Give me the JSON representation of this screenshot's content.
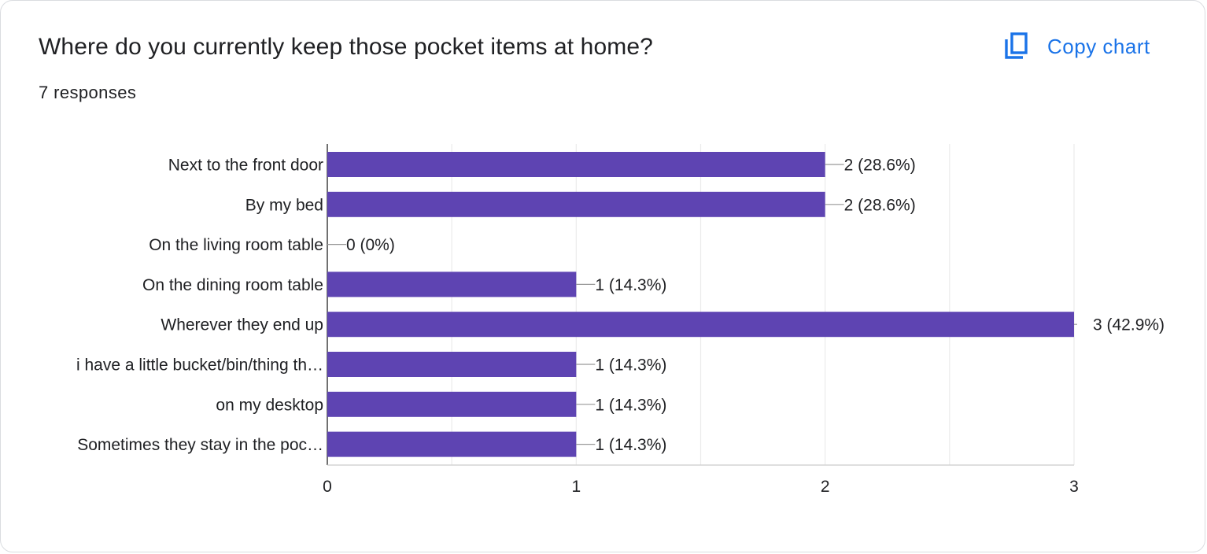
{
  "header": {
    "title": "Where do you currently keep those pocket items at home?",
    "responses": "7 responses",
    "copy_label": "Copy chart",
    "copy_icon": "copy-icon"
  },
  "colors": {
    "bar": "#5e44b2",
    "accent": "#1a73e8",
    "grid": "#ebebeb",
    "text": "#202124"
  },
  "chart_data": {
    "type": "bar",
    "orientation": "horizontal",
    "categories": [
      "Next to the front door",
      "By my bed",
      "On the living room table",
      "On the dining room table",
      "Wherever they end up",
      "i have a little bucket/bin/thing th…",
      "on my desktop",
      "Sometimes they stay in the poc…"
    ],
    "values": [
      2,
      2,
      0,
      1,
      3,
      1,
      1,
      1
    ],
    "value_labels": [
      "2 (28.6%)",
      "2 (28.6%)",
      "0 (0%)",
      "1 (14.3%)",
      "3 (42.9%)",
      "1 (14.3%)",
      "1 (14.3%)",
      "1 (14.3%)"
    ],
    "x_ticks": [
      "0",
      "1",
      "2",
      "3"
    ],
    "xlim": [
      0,
      3
    ],
    "grid": true,
    "legend": "none"
  }
}
